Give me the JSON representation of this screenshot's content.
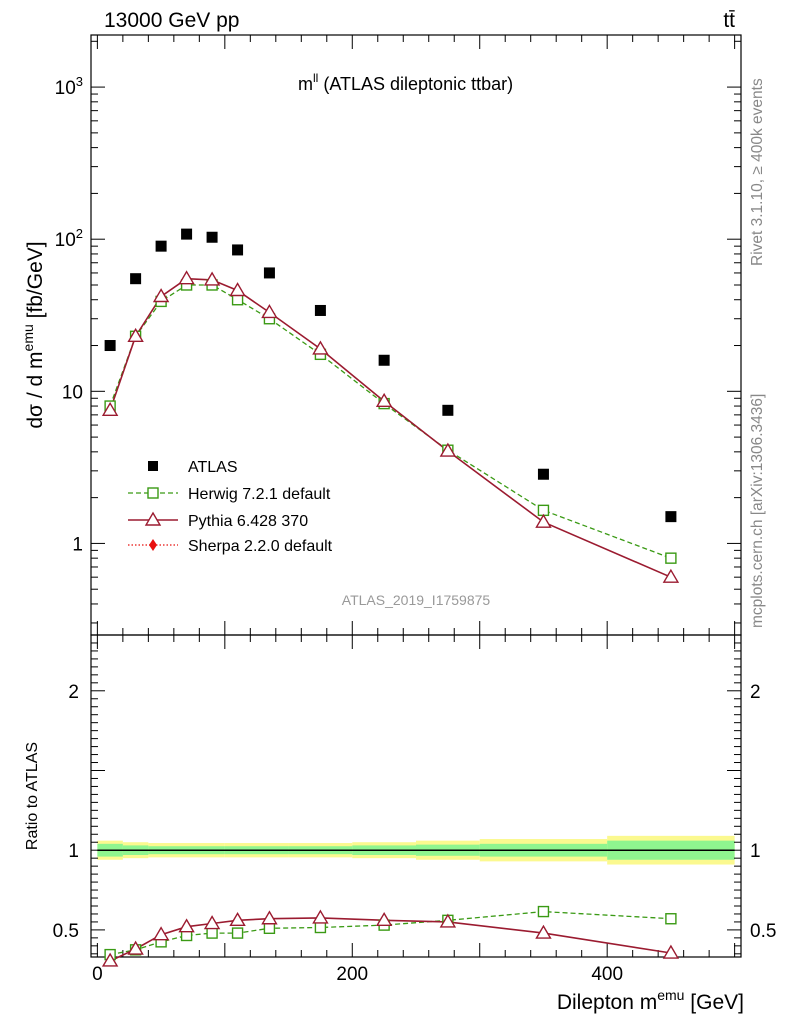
{
  "header": {
    "left": "13000 GeV pp",
    "right": "tt̄"
  },
  "plot_title": {
    "main": "m",
    "sup": "ll",
    "rest": " (ATLAS dileptonic ttbar)"
  },
  "side_text": {
    "rivet": "Rivet 3.1.10, ≥ 400k events",
    "mcplots": "mcplots.cern.ch [arXiv:1306.3436]"
  },
  "analysis_id": "ATLAS_2019_I1759875",
  "ylabel_top": {
    "pre": "dσ / d m",
    "sup": "emu",
    "post": " [fb/GeV]"
  },
  "ylabel_bottom": "Ratio to ATLAS",
  "xlabel": {
    "pre": "Dilepton m",
    "sup": "emu",
    "post": " [GeV]"
  },
  "colors": {
    "atlas": "#000000",
    "herwig": "#3a9a14",
    "pythia": "#9b1b30",
    "sherpa": "#e8100f",
    "band_inner": "#8ff58f",
    "band_outer": "#fbf98f"
  },
  "chart_data": [
    {
      "type": "scatter",
      "panel": "main",
      "yscale": "log",
      "xlim": [
        -5,
        505
      ],
      "ylim": [
        0.25,
        2200
      ],
      "yticks": [
        {
          "value": 1,
          "label": "1"
        },
        {
          "value": 10,
          "label": "10"
        },
        {
          "value": 100,
          "label": "10",
          "sup": "2"
        },
        {
          "value": 1000,
          "label": "10",
          "sup": "3"
        }
      ],
      "x": [
        10,
        30,
        50,
        70,
        90,
        110,
        135,
        175,
        225,
        275,
        350,
        450
      ],
      "series": [
        {
          "name": "ATLAS",
          "style": "data-square",
          "values": [
            20,
            55,
            90,
            108,
            103,
            85,
            60,
            34,
            16,
            7.5,
            2.85,
            1.5
          ]
        },
        {
          "name": "Herwig 7.2.1 default",
          "style": "dashed-open-square",
          "values": [
            8.0,
            23,
            39,
            50,
            50,
            40,
            30,
            17.5,
            8.3,
            4.1,
            1.65,
            0.8
          ]
        },
        {
          "name": "Pythia 6.428 370",
          "style": "solid-open-triangle",
          "values": [
            7.5,
            23,
            42,
            55,
            54,
            46,
            33,
            19,
            8.6,
            4.05,
            1.38,
            0.6
          ]
        },
        {
          "name": "Sherpa 2.2.0 default",
          "style": "dotted-diamond",
          "values": []
        }
      ]
    },
    {
      "type": "line",
      "panel": "ratio",
      "ylabel": "Ratio to ATLAS",
      "xlim": [
        -5,
        505
      ],
      "ylim": [
        0.33,
        2.35
      ],
      "yticks": [
        {
          "value": 0.5,
          "label": "0.5"
        },
        {
          "value": 1,
          "label": "1"
        },
        {
          "value": 2,
          "label": "2"
        }
      ],
      "xticks": [
        {
          "value": 0,
          "label": "0"
        },
        {
          "value": 200,
          "label": "200"
        },
        {
          "value": 400,
          "label": "400"
        }
      ],
      "x": [
        10,
        30,
        50,
        70,
        90,
        110,
        135,
        175,
        225,
        275,
        350,
        450
      ],
      "series": [
        {
          "name": "Herwig 7.2.1 default",
          "values": [
            0.345,
            0.375,
            0.425,
            0.465,
            0.48,
            0.48,
            0.51,
            0.515,
            0.53,
            0.56,
            0.615,
            0.57
          ]
        },
        {
          "name": "Pythia 6.428 370",
          "values": [
            0.305,
            0.38,
            0.47,
            0.52,
            0.54,
            0.56,
            0.57,
            0.575,
            0.56,
            0.55,
            0.48,
            0.355
          ]
        }
      ],
      "bands": {
        "edges": [
          0,
          20,
          40,
          100,
          150,
          200,
          250,
          300,
          400,
          500
        ],
        "inner_half": [
          0.04,
          0.03,
          0.025,
          0.025,
          0.025,
          0.03,
          0.035,
          0.04,
          0.06
        ],
        "outer_half": [
          0.06,
          0.05,
          0.045,
          0.045,
          0.045,
          0.05,
          0.06,
          0.07,
          0.09
        ]
      }
    }
  ]
}
